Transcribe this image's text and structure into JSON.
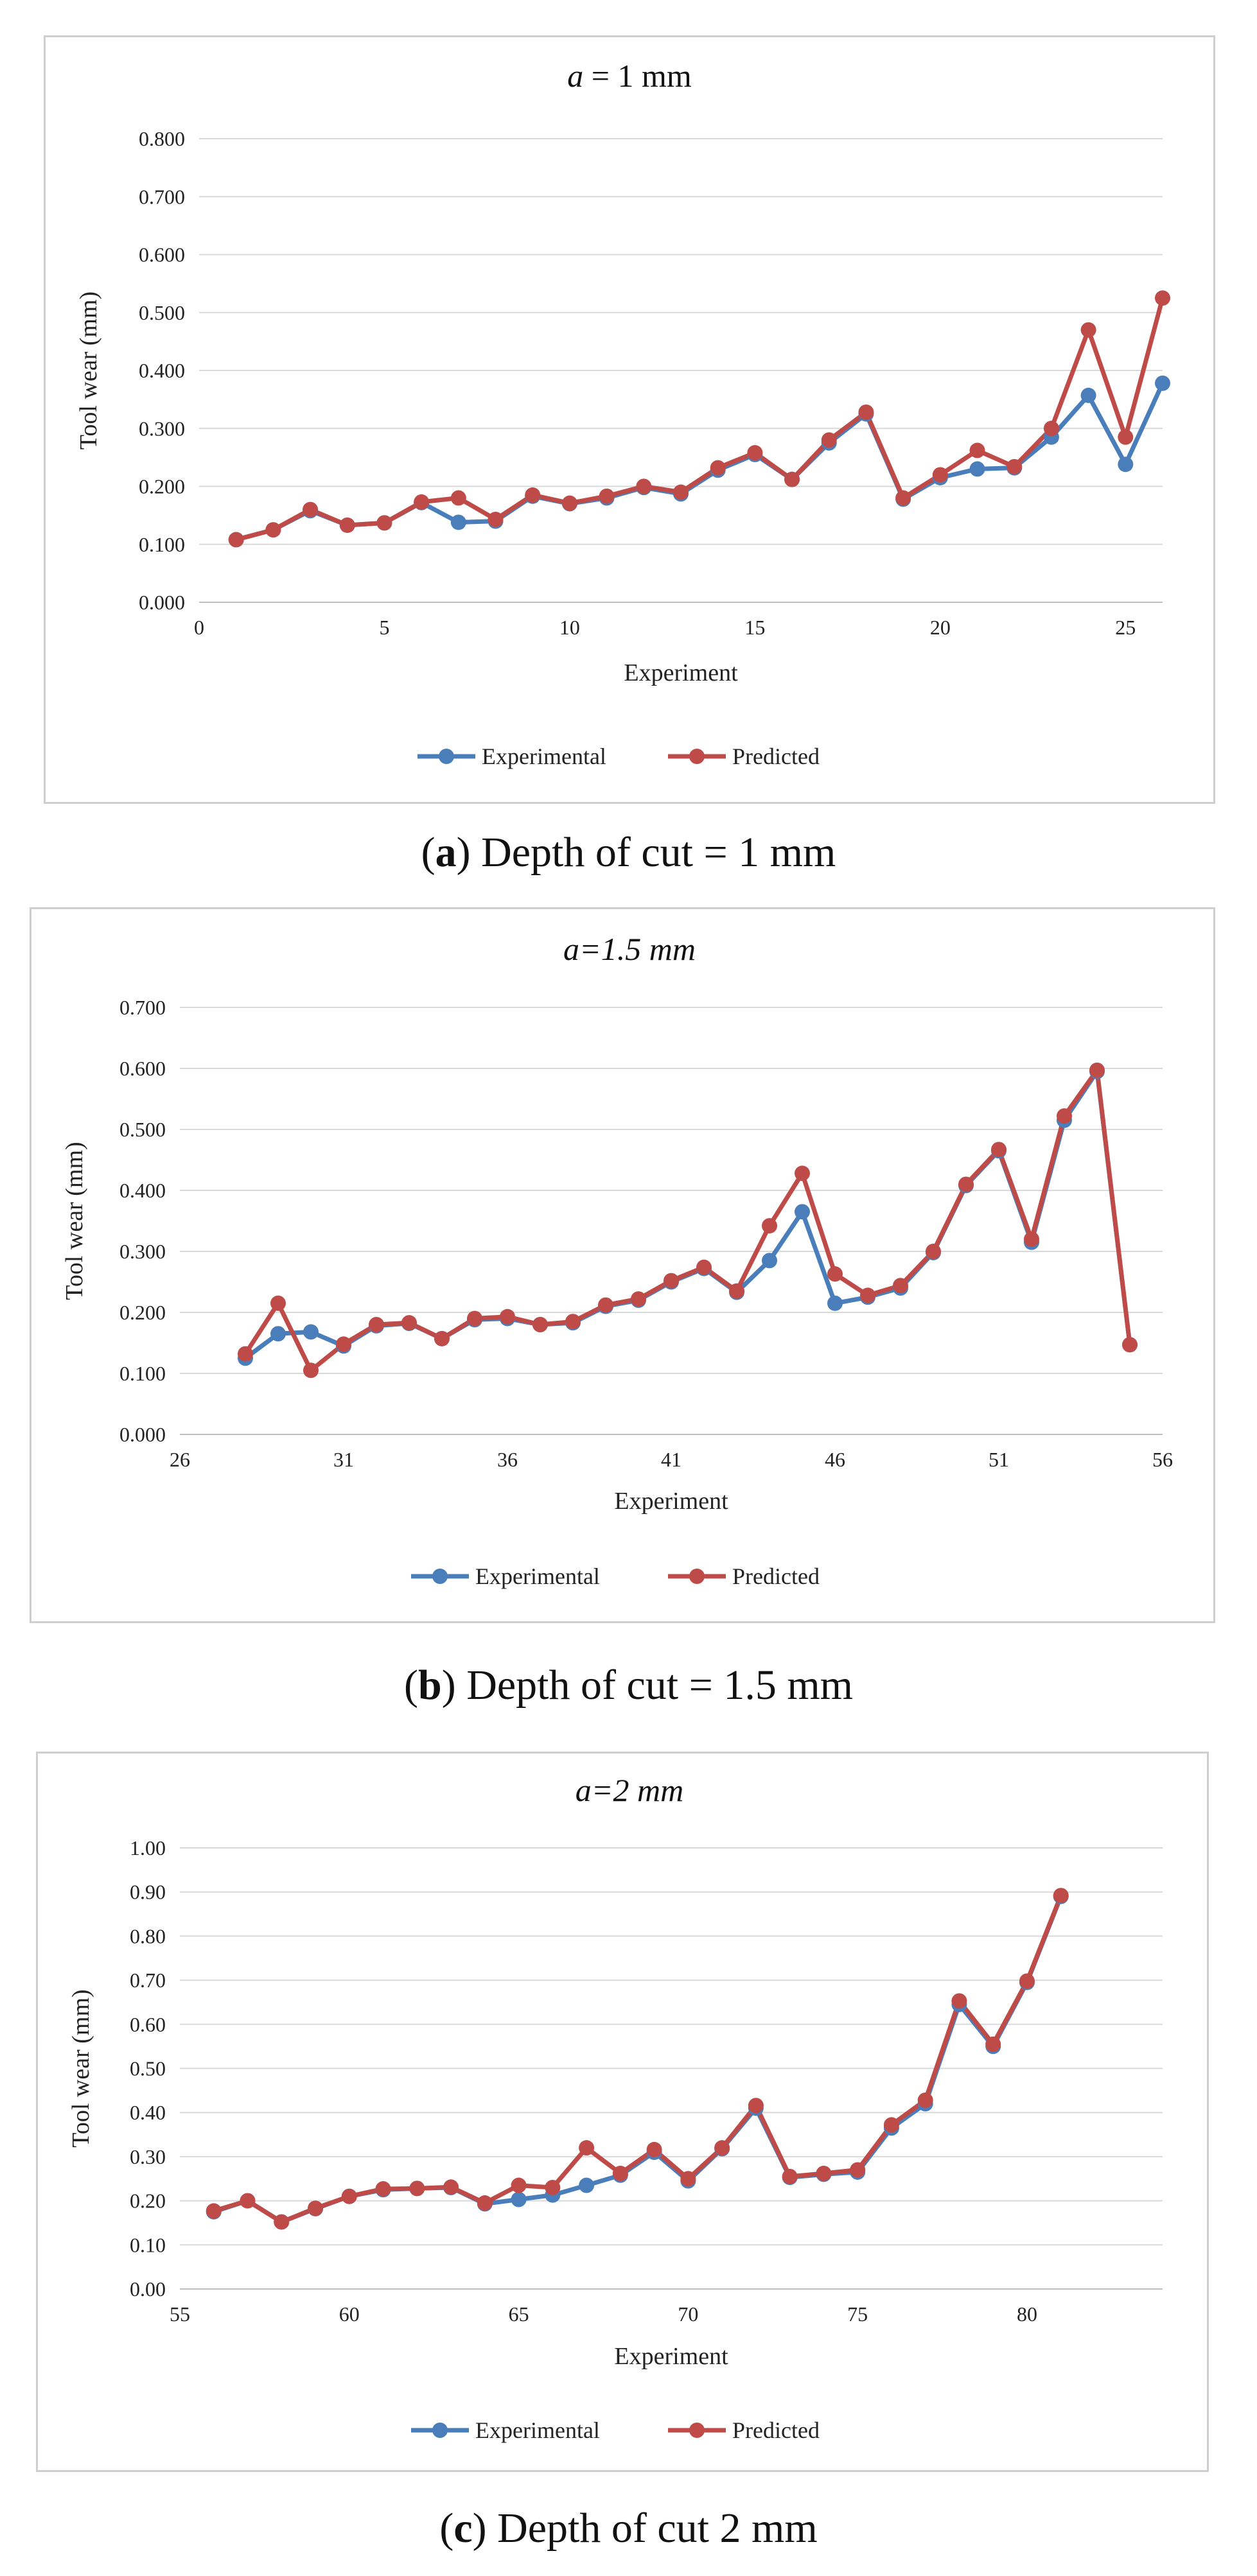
{
  "colors": {
    "experimental": "#4a7ebb",
    "predicted": "#be4b48",
    "grid": "#d9d9d9",
    "axis": "#bfbfbf"
  },
  "legend": {
    "experimental": "Experimental",
    "predicted": "Predicted"
  },
  "chart_data": [
    {
      "type": "line",
      "title_prefix": "a",
      "title_rest": " = 1 mm",
      "xlabel": "Experiment",
      "ylabel": "Tool wear (mm)",
      "xlim": [
        0,
        26
      ],
      "ylim": [
        0,
        0.8
      ],
      "xticks": [
        0,
        5,
        10,
        15,
        20,
        25
      ],
      "xtick_labels": [
        "0",
        "5",
        "10",
        "15",
        "20",
        "25"
      ],
      "yticks": [
        0,
        0.1,
        0.2,
        0.3,
        0.4,
        0.5,
        0.6,
        0.7,
        0.8
      ],
      "ytick_labels": [
        "0.000",
        "0.100",
        "0.200",
        "0.300",
        "0.400",
        "0.500",
        "0.600",
        "0.700",
        "0.800"
      ],
      "x": [
        1,
        2,
        3,
        4,
        5,
        6,
        7,
        8,
        9,
        10,
        11,
        12,
        13,
        14,
        15,
        16,
        17,
        18,
        19,
        20,
        21,
        22,
        23,
        24,
        25,
        26
      ],
      "series": [
        {
          "name": "Experimental",
          "values": [
            0.108,
            0.125,
            0.158,
            0.133,
            0.137,
            0.172,
            0.138,
            0.14,
            0.183,
            0.17,
            0.18,
            0.198,
            0.187,
            0.228,
            0.255,
            0.212,
            0.275,
            0.325,
            0.178,
            0.215,
            0.23,
            0.232,
            0.285,
            0.357,
            0.238,
            0.378
          ]
        },
        {
          "name": "Predicted",
          "values": [
            0.108,
            0.125,
            0.16,
            0.133,
            0.137,
            0.173,
            0.18,
            0.143,
            0.185,
            0.171,
            0.183,
            0.2,
            0.19,
            0.232,
            0.258,
            0.212,
            0.28,
            0.328,
            0.18,
            0.22,
            0.262,
            0.234,
            0.3,
            0.47,
            0.285,
            0.525
          ]
        }
      ],
      "caption_letter": "a",
      "caption_text": "Depth of cut = 1 mm"
    },
    {
      "type": "line",
      "title_prefix": "a",
      "title_rest": "=1.5 mm",
      "xlabel": "Experiment",
      "ylabel": "Tool wear (mm)",
      "xlim": [
        26,
        56
      ],
      "ylim": [
        0,
        0.7
      ],
      "xticks": [
        26,
        31,
        36,
        41,
        46,
        51,
        56
      ],
      "xtick_labels": [
        "26",
        "31",
        "36",
        "41",
        "46",
        "51",
        "56"
      ],
      "yticks": [
        0,
        0.1,
        0.2,
        0.3,
        0.4,
        0.5,
        0.6,
        0.7
      ],
      "ytick_labels": [
        "0.000",
        "0.100",
        "0.200",
        "0.300",
        "0.400",
        "0.500",
        "0.600",
        "0.700"
      ],
      "x": [
        28,
        29,
        30,
        31,
        32,
        33,
        34,
        35,
        36,
        37,
        38,
        39,
        40,
        41,
        42,
        43,
        44,
        45,
        46,
        47,
        48,
        49,
        50,
        51,
        52,
        53,
        54,
        55
      ],
      "series": [
        {
          "name": "Experimental",
          "values": [
            0.125,
            0.165,
            0.168,
            0.145,
            0.178,
            0.182,
            0.157,
            0.188,
            0.19,
            0.18,
            0.183,
            0.21,
            0.22,
            0.25,
            0.272,
            0.233,
            0.285,
            0.365,
            0.215,
            0.225,
            0.24,
            0.298,
            0.408,
            0.465,
            0.315,
            0.515,
            0.595,
            0.147
          ]
        },
        {
          "name": "Predicted",
          "values": [
            0.132,
            0.215,
            0.105,
            0.148,
            0.18,
            0.183,
            0.157,
            0.19,
            0.193,
            0.18,
            0.185,
            0.212,
            0.222,
            0.252,
            0.274,
            0.235,
            0.342,
            0.428,
            0.263,
            0.228,
            0.244,
            0.3,
            0.41,
            0.467,
            0.32,
            0.522,
            0.597,
            0.147
          ]
        }
      ],
      "caption_letter": "b",
      "caption_text": "Depth of cut = 1.5 mm"
    },
    {
      "type": "line",
      "title_prefix": "a",
      "title_rest": "=2 mm",
      "xlabel": "Experiment",
      "ylabel": "Tool wear (mm)",
      "xlim": [
        55,
        84
      ],
      "ylim": [
        0,
        1.0
      ],
      "xticks": [
        55,
        60,
        65,
        70,
        75,
        80
      ],
      "xtick_labels": [
        "55",
        "60",
        "65",
        "70",
        "75",
        "80"
      ],
      "yticks": [
        0,
        0.1,
        0.2,
        0.3,
        0.4,
        0.5,
        0.6,
        0.7,
        0.8,
        0.9,
        1.0
      ],
      "ytick_labels": [
        "0.00",
        "0.10",
        "0.20",
        "0.30",
        "0.40",
        "0.50",
        "0.60",
        "0.70",
        "0.80",
        "0.90",
        "1.00"
      ],
      "x": [
        56,
        57,
        58,
        59,
        60,
        61,
        62,
        63,
        64,
        65,
        66,
        67,
        68,
        69,
        70,
        71,
        72,
        73,
        74,
        75,
        76,
        77,
        78,
        79,
        80,
        81
      ],
      "series": [
        {
          "name": "Experimental",
          "values": [
            0.175,
            0.2,
            0.152,
            0.182,
            0.21,
            0.225,
            0.228,
            0.23,
            0.193,
            0.203,
            0.213,
            0.235,
            0.258,
            0.31,
            0.245,
            0.318,
            0.41,
            0.253,
            0.26,
            0.265,
            0.365,
            0.42,
            0.645,
            0.55,
            0.695,
            0.89
          ]
        },
        {
          "name": "Predicted",
          "values": [
            0.177,
            0.2,
            0.152,
            0.183,
            0.21,
            0.227,
            0.228,
            0.231,
            0.195,
            0.235,
            0.23,
            0.32,
            0.262,
            0.316,
            0.25,
            0.32,
            0.416,
            0.255,
            0.262,
            0.27,
            0.372,
            0.428,
            0.653,
            0.555,
            0.698,
            0.892
          ]
        }
      ],
      "caption_letter": "c",
      "caption_text": "Depth of cut 2 mm"
    }
  ]
}
